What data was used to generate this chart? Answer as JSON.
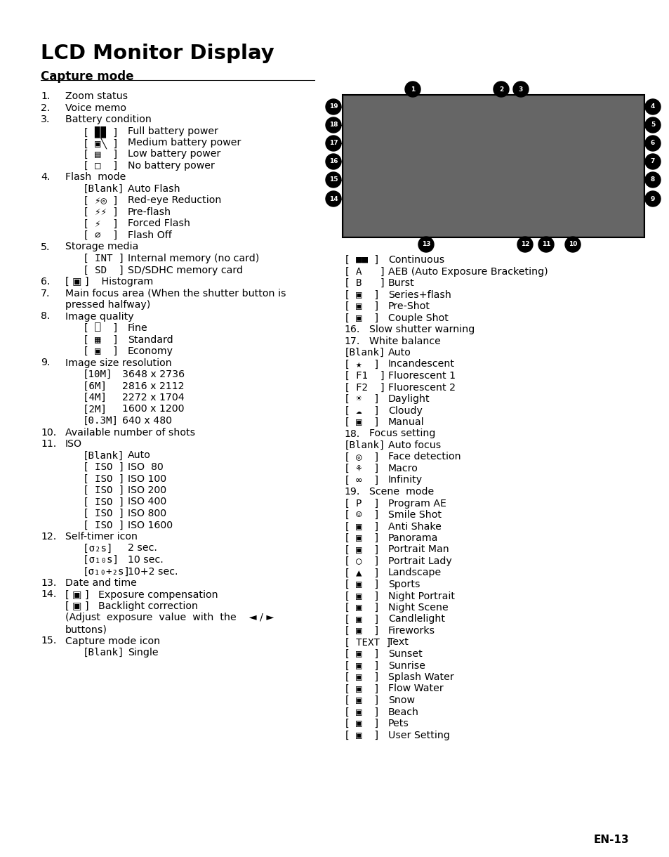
{
  "title": "LCD Monitor Display",
  "subtitle": "Capture mode",
  "background_color": "#ffffff",
  "text_color": "#000000",
  "page_num": "EN-13",
  "fig_width": 9.54,
  "fig_height": 12.2,
  "dpi": 100
}
